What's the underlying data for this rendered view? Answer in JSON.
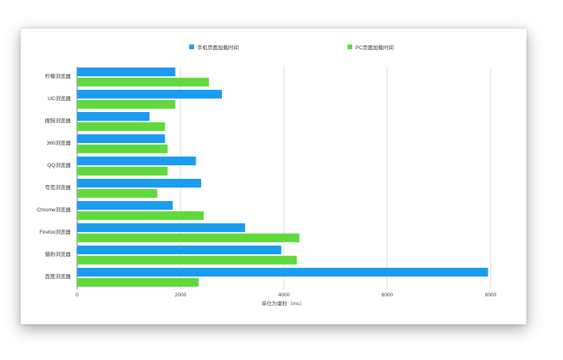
{
  "chart_data": {
    "type": "bar",
    "orientation": "horizontal",
    "title": "",
    "categories": [
      "柠檬浏览器",
      "UC浏览器",
      "搜狗浏览器",
      "360浏览器",
      "QQ浏览器",
      "夸克浏览器",
      "Chrome浏览器",
      "Firefox浏览器",
      "猎豹浏览器",
      "百度浏览器"
    ],
    "series": [
      {
        "name": "手机页面加载时间",
        "color": "#1a9cf0",
        "values": [
          1900,
          2800,
          1400,
          1700,
          2300,
          2400,
          1850,
          3250,
          3950,
          7950
        ]
      },
      {
        "name": "PC页面加载时间",
        "color": "#5fd93b",
        "values": [
          2550,
          1900,
          1700,
          1750,
          1750,
          1550,
          2450,
          4300,
          4250,
          2350
        ]
      }
    ],
    "xlabel": "单位为毫秒（ms）",
    "ylabel": "",
    "xlim": [
      0,
      8000
    ],
    "xticks": [
      0,
      2000,
      4000,
      6000,
      8000
    ],
    "grid": true,
    "legend_position": "top"
  }
}
